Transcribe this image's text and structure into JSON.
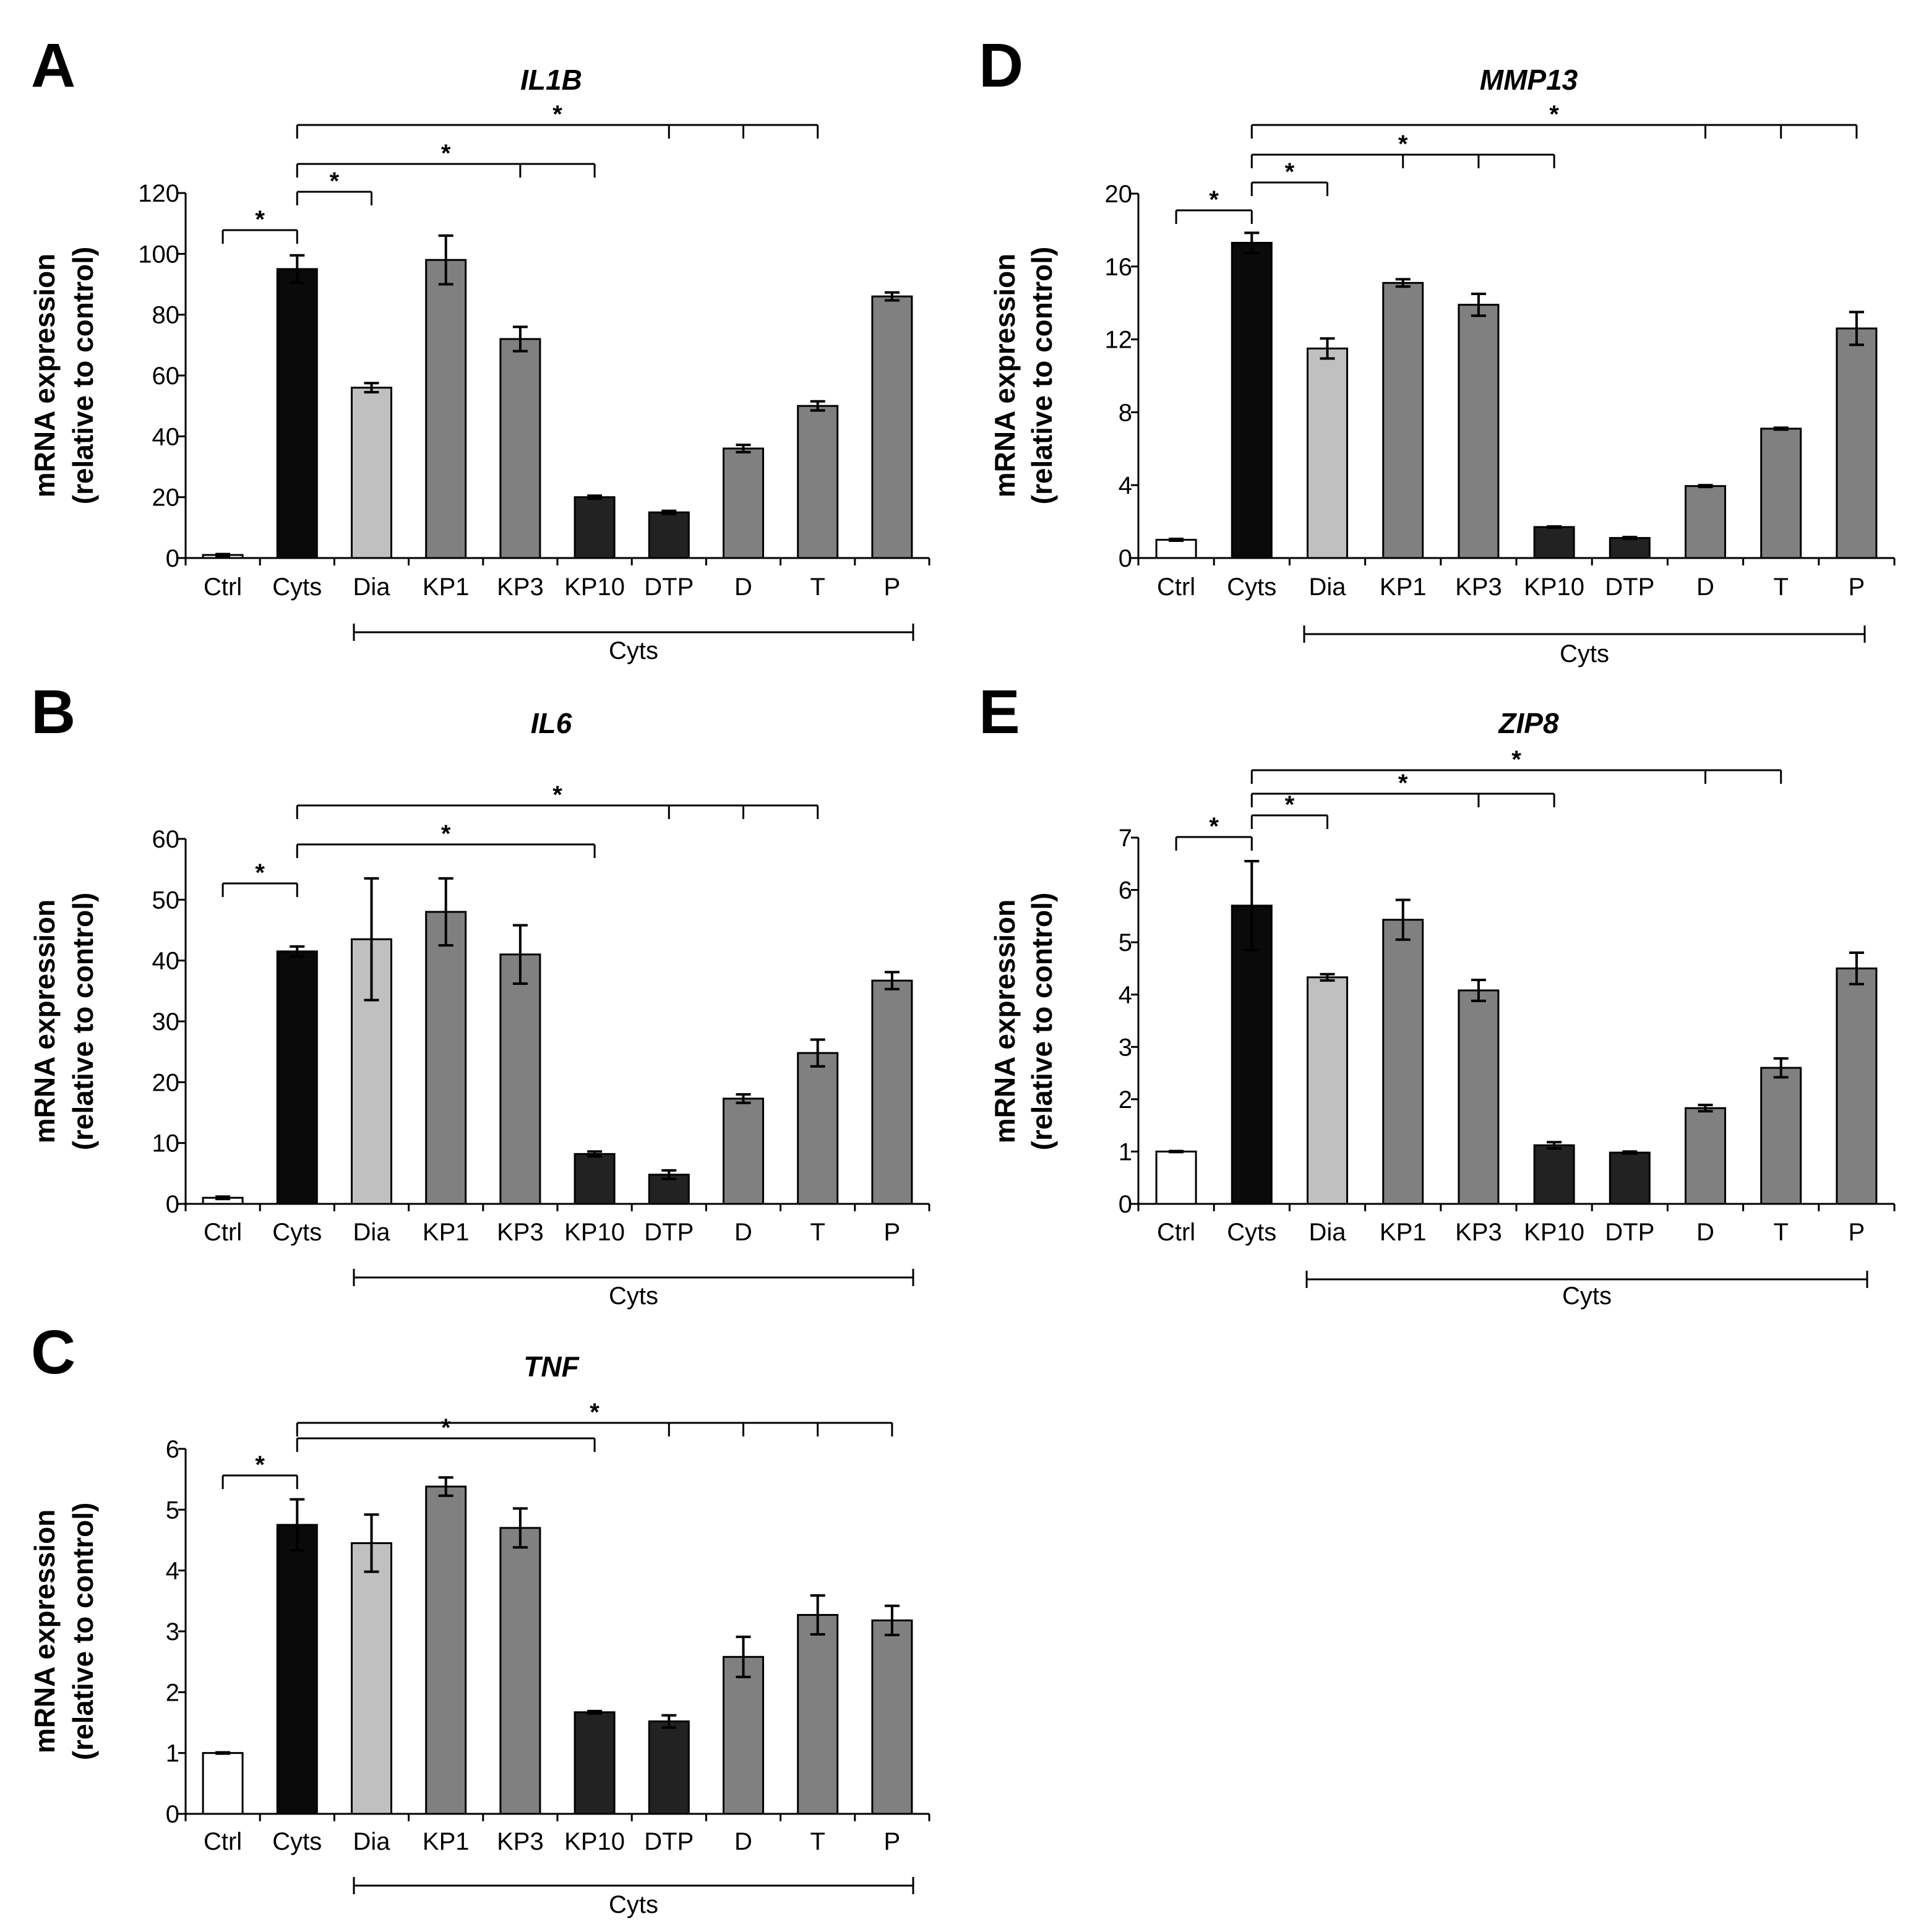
{
  "colors": {
    "ctrl": "#ffffff",
    "cyts": "#0a0a0a",
    "dia": "#c0c0c0",
    "gray": "#808080",
    "dark": "#222222",
    "axis": "#000000",
    "text": "#000000"
  },
  "chart_data": [
    {
      "panel": "A",
      "type": "bar",
      "title": "IL1B",
      "ylabel": [
        "mRNA expression",
        "(relative to control)"
      ],
      "categories": [
        "Ctrl",
        "Cyts",
        "Dia",
        "KP1",
        "KP3",
        "KP10",
        "DTP",
        "D",
        "T",
        "P"
      ],
      "values": [
        1,
        95,
        56,
        98,
        72,
        20,
        15,
        36,
        50,
        86
      ],
      "errors": [
        0.3,
        4.5,
        1.5,
        8,
        4,
        0.5,
        0.5,
        1.2,
        1.5,
        1.3
      ],
      "colors": [
        "ctrl",
        "cyts",
        "dia",
        "gray",
        "gray",
        "dark",
        "dark",
        "gray",
        "gray",
        "gray"
      ],
      "ylim": [
        0,
        120
      ],
      "yticks": [
        0,
        20,
        40,
        60,
        80,
        100,
        120
      ],
      "group_label": "Cyts",
      "significance": [
        {
          "from": 0,
          "to": [
            1
          ],
          "label": "*"
        },
        {
          "from": 1,
          "to": [
            2
          ],
          "label": "*"
        },
        {
          "from": 1,
          "to": [
            4,
            5
          ],
          "label": "*"
        },
        {
          "from": 1,
          "to": [
            6,
            7,
            8
          ],
          "label": "*"
        }
      ]
    },
    {
      "panel": "B",
      "type": "bar",
      "title": "IL6",
      "ylabel": [
        "mRNA expression",
        "(relative to control)"
      ],
      "categories": [
        "Ctrl",
        "Cyts",
        "Dia",
        "KP1",
        "KP3",
        "KP10",
        "DTP",
        "D",
        "T",
        "P"
      ],
      "values": [
        1,
        41.5,
        43.5,
        48,
        41,
        8.2,
        4.8,
        17.3,
        24.8,
        36.7
      ],
      "errors": [
        0.2,
        0.8,
        10,
        5.5,
        4.8,
        0.4,
        0.7,
        0.7,
        2.2,
        1.4
      ],
      "colors": [
        "ctrl",
        "cyts",
        "dia",
        "gray",
        "gray",
        "dark",
        "dark",
        "gray",
        "gray",
        "gray"
      ],
      "ylim": [
        0,
        60
      ],
      "yticks": [
        0,
        10,
        20,
        30,
        40,
        50,
        60
      ],
      "group_label": "Cyts",
      "significance": [
        {
          "from": 0,
          "to": [
            1
          ],
          "label": "*"
        },
        {
          "from": 1,
          "to": [
            5
          ],
          "label": "*"
        },
        {
          "from": 1,
          "to": [
            6,
            7,
            8
          ],
          "label": "*"
        }
      ]
    },
    {
      "panel": "C",
      "type": "bar",
      "title": "TNF",
      "ylabel": [
        "mRNA expression",
        "(relative to control)"
      ],
      "categories": [
        "Ctrl",
        "Cyts",
        "Dia",
        "KP1",
        "KP3",
        "KP10",
        "DTP",
        "D",
        "T",
        "P"
      ],
      "values": [
        1,
        4.75,
        4.45,
        5.38,
        4.7,
        1.67,
        1.52,
        2.58,
        3.27,
        3.18
      ],
      "errors": [
        0.01,
        0.42,
        0.47,
        0.15,
        0.32,
        0.02,
        0.1,
        0.33,
        0.32,
        0.24
      ],
      "colors": [
        "ctrl",
        "cyts",
        "dia",
        "gray",
        "gray",
        "dark",
        "dark",
        "gray",
        "gray",
        "gray"
      ],
      "ylim": [
        0,
        6
      ],
      "yticks": [
        0,
        1,
        2,
        3,
        4,
        5,
        6
      ],
      "group_label": "Cyts",
      "significance": [
        {
          "from": 0,
          "to": [
            1
          ],
          "label": "*"
        },
        {
          "from": 1,
          "to": [
            5
          ],
          "label": "*"
        },
        {
          "from": 1,
          "to": [
            6,
            7,
            8,
            9
          ],
          "label": "*"
        }
      ]
    },
    {
      "panel": "D",
      "type": "bar",
      "title": "MMP13",
      "ylabel": [
        "mRNA expression",
        "(relative to control)"
      ],
      "categories": [
        "Ctrl",
        "Cyts",
        "Dia",
        "KP1",
        "KP3",
        "KP10",
        "DTP",
        "D",
        "T",
        "P"
      ],
      "values": [
        1,
        17.3,
        11.5,
        15.1,
        13.9,
        1.7,
        1.1,
        3.95,
        7.1,
        12.6
      ],
      "errors": [
        0.05,
        0.55,
        0.55,
        0.2,
        0.6,
        0.03,
        0.05,
        0.05,
        0.05,
        0.9
      ],
      "colors": [
        "ctrl",
        "cyts",
        "dia",
        "gray",
        "gray",
        "dark",
        "dark",
        "gray",
        "gray",
        "gray"
      ],
      "ylim": [
        0,
        20
      ],
      "yticks": [
        0,
        4,
        8,
        12,
        16,
        20
      ],
      "group_label": "Cyts",
      "significance": [
        {
          "from": 0,
          "to": [
            1
          ],
          "label": "*"
        },
        {
          "from": 1,
          "to": [
            2
          ],
          "label": "*"
        },
        {
          "from": 1,
          "to": [
            3,
            4,
            5
          ],
          "label": "*"
        },
        {
          "from": 1,
          "to": [
            7,
            8,
            9
          ],
          "label": "*"
        }
      ]
    },
    {
      "panel": "E",
      "type": "bar",
      "title": "ZIP8",
      "ylabel": [
        "mRNA expression",
        "(relative to control)"
      ],
      "categories": [
        "Ctrl",
        "Cyts",
        "Dia",
        "KP1",
        "KP3",
        "KP10",
        "DTP",
        "D",
        "T",
        "P"
      ],
      "values": [
        1,
        5.7,
        4.33,
        5.43,
        4.08,
        1.12,
        0.98,
        1.83,
        2.6,
        4.5
      ],
      "errors": [
        0.01,
        0.85,
        0.06,
        0.38,
        0.2,
        0.06,
        0.02,
        0.06,
        0.18,
        0.3
      ],
      "colors": [
        "ctrl",
        "cyts",
        "dia",
        "gray",
        "gray",
        "dark",
        "dark",
        "gray",
        "gray",
        "gray"
      ],
      "ylim": [
        0,
        7
      ],
      "yticks": [
        0,
        1,
        2,
        3,
        4,
        5,
        6,
        7
      ],
      "group_label": "Cyts",
      "significance": [
        {
          "from": 0,
          "to": [
            1
          ],
          "label": "*"
        },
        {
          "from": 1,
          "to": [
            2
          ],
          "label": "*"
        },
        {
          "from": 1,
          "to": [
            4,
            5
          ],
          "label": "*"
        },
        {
          "from": 1,
          "to": [
            7,
            8
          ],
          "label": "*"
        }
      ]
    }
  ]
}
